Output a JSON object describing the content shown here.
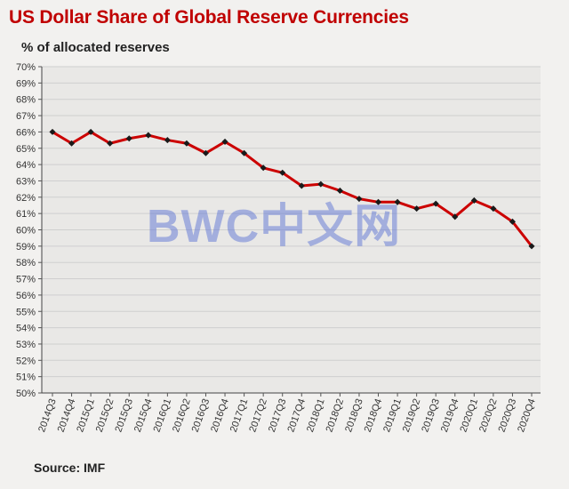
{
  "chart_data": {
    "type": "line",
    "title": "US Dollar Share of Global  Reserve Currencies",
    "subtitle": "% of allocated reserves",
    "source": "Source: IMF",
    "ylim": [
      50,
      70
    ],
    "y_ticks": [
      "50%",
      "51%",
      "52%",
      "53%",
      "54%",
      "55%",
      "56%",
      "57%",
      "58%",
      "59%",
      "60%",
      "61%",
      "62%",
      "63%",
      "64%",
      "65%",
      "66%",
      "67%",
      "68%",
      "69%",
      "70%"
    ],
    "categories": [
      "2014Q3",
      "2014Q4",
      "2015Q1",
      "2015Q2",
      "2015Q3",
      "2015Q4",
      "2016Q1",
      "2016Q2",
      "2016Q3",
      "2016Q4",
      "2017Q1",
      "2017Q2",
      "2017Q3",
      "2017Q4",
      "2018Q1",
      "2018Q2",
      "2018Q3",
      "2018Q4",
      "2019Q1",
      "2019Q2",
      "2019Q3",
      "2019Q4",
      "2020Q1",
      "2020Q2",
      "2020Q3",
      "2020Q4"
    ],
    "series": [
      {
        "values": [
          66.0,
          65.3,
          66.0,
          65.3,
          65.6,
          65.8,
          65.5,
          65.3,
          64.7,
          65.4,
          64.7,
          63.8,
          63.5,
          62.7,
          62.8,
          62.4,
          61.9,
          61.7,
          61.7,
          61.3,
          61.6,
          60.8,
          61.8,
          61.3,
          60.5,
          59.0
        ],
        "color": "#cc0000",
        "marker_color": "#1a1a1a"
      }
    ],
    "grid": true
  },
  "watermark": "BWC中文网"
}
